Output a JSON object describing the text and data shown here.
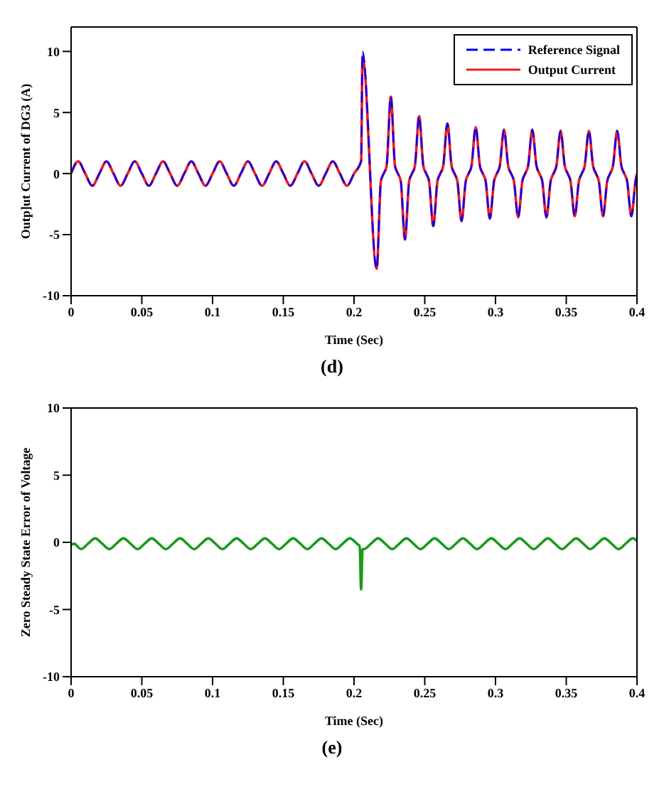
{
  "chart_data": [
    {
      "type": "line",
      "xlabel": "Time (Sec)",
      "ylabel": "Outp]ut Current of DG3 (A)",
      "annotations": [
        "(d)"
      ],
      "xlim": [
        0,
        0.4
      ],
      "xticks": [
        0,
        0.05,
        0.1,
        0.15,
        0.2,
        0.25,
        0.3,
        0.35,
        0.4
      ],
      "ylim": [
        -10,
        12
      ],
      "yticks": [
        -10,
        -5,
        0,
        5,
        10
      ],
      "grid": false,
      "legend": "top right",
      "marker": "none",
      "x": [
        0,
        0.005,
        0.01,
        0.015,
        0.02,
        0.025,
        0.03,
        0.035,
        0.04,
        0.045,
        0.05,
        0.055,
        0.06,
        0.065,
        0.07,
        0.075,
        0.08,
        0.085,
        0.09,
        0.095,
        0.1,
        0.105,
        0.11,
        0.115,
        0.12,
        0.125,
        0.13,
        0.135,
        0.14,
        0.145,
        0.15,
        0.155,
        0.16,
        0.165,
        0.17,
        0.175,
        0.18,
        0.185,
        0.19,
        0.195,
        0.2,
        0.205,
        0.206,
        0.216,
        0.219,
        0.221,
        0.223,
        0.226,
        0.229,
        0.231,
        0.233,
        0.236,
        0.239,
        0.241,
        0.243,
        0.246,
        0.249,
        0.251,
        0.253,
        0.256,
        0.259,
        0.261,
        0.263,
        0.266,
        0.269,
        0.271,
        0.273,
        0.276,
        0.279,
        0.281,
        0.283,
        0.286,
        0.289,
        0.291,
        0.293,
        0.296,
        0.299,
        0.301,
        0.303,
        0.306,
        0.309,
        0.311,
        0.313,
        0.316,
        0.319,
        0.321,
        0.323,
        0.326,
        0.329,
        0.331,
        0.333,
        0.336,
        0.339,
        0.341,
        0.343,
        0.346,
        0.349,
        0.351,
        0.353,
        0.356,
        0.359,
        0.361,
        0.363,
        0.366,
        0.369,
        0.371,
        0.373,
        0.376,
        0.379,
        0.381,
        0.383,
        0.386,
        0.389,
        0.391,
        0.393,
        0.396,
        0.399,
        0.4
      ],
      "series": [
        {
          "name": "Reference Signal",
          "color": "#0000ff",
          "line_style": "dashed",
          "values": [
            0,
            1,
            0,
            -1,
            0,
            1,
            0,
            -1,
            0,
            1,
            0,
            -1,
            0,
            1,
            0,
            -1,
            0,
            1,
            0,
            -1,
            0,
            1,
            0,
            -1,
            0,
            1,
            0,
            -1,
            0,
            1,
            0,
            -1,
            0,
            1,
            0,
            -1,
            0,
            1,
            0,
            -1,
            0,
            1,
            10,
            -7.8,
            -0.6,
            0,
            0.6,
            6.3,
            0.6,
            0,
            -0.6,
            -5.4,
            -0.6,
            0,
            0.6,
            4.7,
            0.6,
            0,
            -0.6,
            -4.3,
            -0.6,
            0,
            0.6,
            4.1,
            0.6,
            0,
            -0.6,
            -3.9,
            -0.6,
            0,
            0.6,
            3.8,
            0.6,
            0,
            -0.6,
            -3.7,
            -0.6,
            0,
            0.6,
            3.6,
            0.6,
            0,
            -0.6,
            -3.6,
            -0.6,
            0,
            0.6,
            3.6,
            0.6,
            0,
            -0.6,
            -3.6,
            -0.6,
            0,
            0.6,
            3.5,
            0.6,
            0,
            -0.6,
            -3.5,
            -0.6,
            0,
            0.6,
            3.5,
            0.6,
            0,
            -0.6,
            -3.5,
            -0.6,
            0,
            0.6,
            3.5,
            0.6,
            0,
            -0.6,
            -3.5,
            -0.6,
            0
          ]
        },
        {
          "name": "Output Current",
          "color": "#ee1c1c",
          "line_style": "solid",
          "values": [
            0,
            1,
            0,
            -1,
            0,
            1,
            0,
            -1,
            0,
            1,
            0,
            -1,
            0,
            1,
            0,
            -1,
            0,
            1,
            0,
            -1,
            0,
            1,
            0,
            -1,
            0,
            1,
            0,
            -1,
            0,
            1,
            0,
            -1,
            0,
            1,
            0,
            -1,
            0,
            1,
            0,
            -1,
            0,
            1,
            9.6,
            -7.8,
            -0.6,
            0,
            0.6,
            6.3,
            0.6,
            0,
            -0.6,
            -5.4,
            -0.6,
            0,
            0.6,
            4.7,
            0.6,
            0,
            -0.6,
            -4.3,
            -0.6,
            0,
            0.6,
            4.1,
            0.6,
            0,
            -0.6,
            -3.9,
            -0.6,
            0,
            0.6,
            3.8,
            0.6,
            0,
            -0.6,
            -3.7,
            -0.6,
            0,
            0.6,
            3.6,
            0.6,
            0,
            -0.6,
            -3.6,
            -0.6,
            0,
            0.6,
            3.6,
            0.6,
            0,
            -0.6,
            -3.6,
            -0.6,
            0,
            0.6,
            3.5,
            0.6,
            0,
            -0.6,
            -3.5,
            -0.6,
            0,
            0.6,
            3.5,
            0.6,
            0,
            -0.6,
            -3.5,
            -0.6,
            0,
            0.6,
            3.5,
            0.6,
            0,
            -0.6,
            -3.5,
            -0.6,
            0
          ]
        }
      ]
    },
    {
      "type": "line",
      "xlabel": "Time (Sec)",
      "ylabel": "Zero Steady State Error of Voltage",
      "annotations": [
        "(e)"
      ],
      "xlim": [
        0,
        0.4
      ],
      "xticks": [
        0,
        0.05,
        0.1,
        0.15,
        0.2,
        0.25,
        0.3,
        0.35,
        0.4
      ],
      "ylim": [
        -10,
        10
      ],
      "yticks": [
        -10,
        -5,
        0,
        5,
        10
      ],
      "grid": false,
      "legend": false,
      "marker": "none",
      "x": [
        0,
        0.002,
        0.007,
        0.012,
        0.017,
        0.022,
        0.027,
        0.032,
        0.037,
        0.042,
        0.047,
        0.052,
        0.057,
        0.062,
        0.067,
        0.072,
        0.077,
        0.082,
        0.087,
        0.092,
        0.097,
        0.102,
        0.107,
        0.112,
        0.117,
        0.122,
        0.127,
        0.132,
        0.137,
        0.142,
        0.147,
        0.152,
        0.157,
        0.162,
        0.167,
        0.172,
        0.177,
        0.182,
        0.187,
        0.192,
        0.197,
        0.202,
        0.204,
        0.205,
        0.206,
        0.207,
        0.212,
        0.217,
        0.222,
        0.227,
        0.232,
        0.237,
        0.242,
        0.247,
        0.252,
        0.257,
        0.262,
        0.267,
        0.272,
        0.277,
        0.282,
        0.287,
        0.292,
        0.297,
        0.302,
        0.307,
        0.312,
        0.317,
        0.322,
        0.327,
        0.332,
        0.337,
        0.342,
        0.347,
        0.352,
        0.357,
        0.362,
        0.367,
        0.372,
        0.377,
        0.382,
        0.387,
        0.392,
        0.397,
        0.4
      ],
      "series": [
        {
          "color": "#1a9a1a",
          "line_style": "solid",
          "values": [
            -0.2,
            -0.1,
            -0.5,
            -0.1,
            0.3,
            -0.1,
            -0.5,
            -0.1,
            0.3,
            -0.1,
            -0.5,
            -0.1,
            0.3,
            -0.1,
            -0.5,
            -0.1,
            0.3,
            -0.1,
            -0.5,
            -0.1,
            0.3,
            -0.1,
            -0.5,
            -0.1,
            0.3,
            -0.1,
            -0.5,
            -0.1,
            0.3,
            -0.1,
            -0.5,
            -0.1,
            0.3,
            -0.1,
            -0.5,
            -0.1,
            0.3,
            -0.1,
            -0.5,
            -0.1,
            0.3,
            -0.1,
            -0.3,
            -3.5,
            -0.5,
            -0.5,
            -0.1,
            0.3,
            -0.1,
            -0.5,
            -0.1,
            0.3,
            -0.1,
            -0.5,
            -0.1,
            0.3,
            -0.1,
            -0.5,
            -0.1,
            0.3,
            -0.1,
            -0.5,
            -0.1,
            0.3,
            -0.1,
            -0.5,
            -0.1,
            0.3,
            -0.1,
            -0.5,
            -0.1,
            0.3,
            -0.1,
            -0.5,
            -0.1,
            0.3,
            -0.1,
            -0.5,
            -0.1,
            0.3,
            -0.1,
            -0.5,
            -0.1,
            0.3,
            0.1
          ]
        }
      ]
    }
  ]
}
